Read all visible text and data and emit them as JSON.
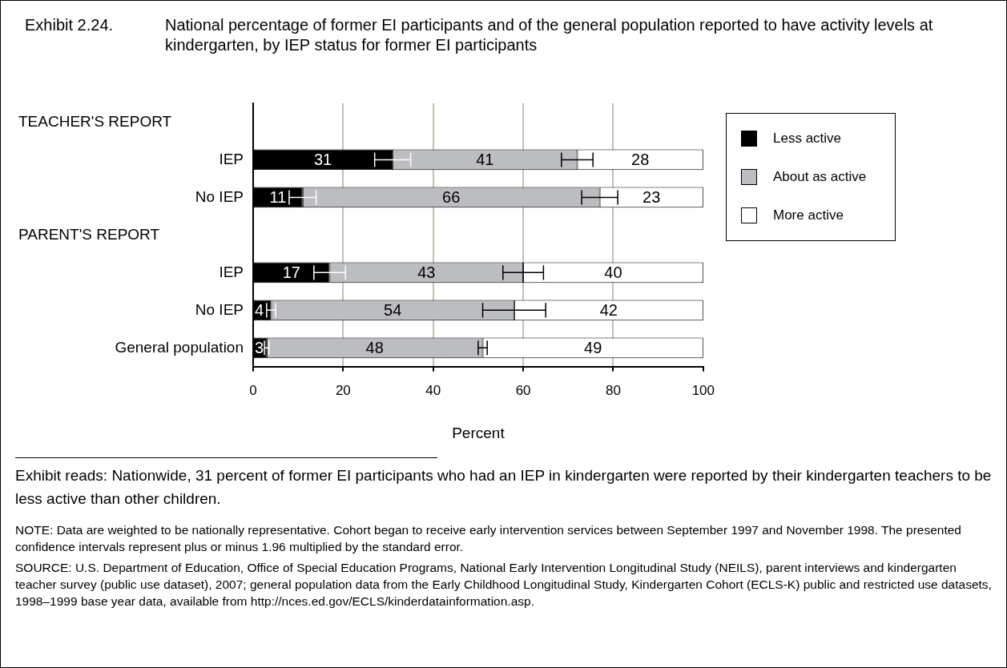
{
  "chart_data": {
    "type": "bar",
    "orientation": "horizontal",
    "stacked": true,
    "title": "Exhibit 2.24.  National percentage of former EI participants and of the general population reported to have activity levels at kindergarten, by IEP status for former EI participants",
    "xlabel": "Percent",
    "categories": [
      null,
      "IEP",
      "No IEP",
      null,
      "IEP",
      "No IEP",
      "General population"
    ],
    "series": [
      {
        "name": "Less active",
        "color": "#000000",
        "values": [
          null,
          31,
          11,
          null,
          17,
          4,
          3
        ],
        "errors": [
          null,
          4,
          3,
          null,
          3.5,
          1,
          0.5
        ]
      },
      {
        "name": "About as active",
        "color": "#bcbdc0",
        "values": [
          null,
          41,
          66,
          null,
          43,
          54,
          48
        ],
        "errors": [
          null,
          3.5,
          4,
          null,
          4.5,
          7,
          1
        ]
      },
      {
        "name": "More active",
        "color": "#ffffff",
        "values": [
          null,
          28,
          23,
          null,
          40,
          42,
          49
        ]
      }
    ],
    "xlim": [
      0,
      100
    ],
    "xticks": [
      0,
      20,
      40,
      60,
      80,
      100
    ],
    "grid": "x",
    "legend": "top right",
    "data_labels": true,
    "annotations": [
      "TEACHER'S REPORT",
      "PARENT'S REPORT",
      "Exhibit reads: Nationwide, 31 percent of former EI participants who had an IEP in kindergarten were reported by their kindergarten teachers to be less active than other children.",
      "NOTE: Data are weighted to be nationally representative. Cohort began to receive early intervention services between September 1997 and November 1998. The presented confidence intervals represent plus or minus 1.96 multiplied by the standard error.",
      "SOURCE: U.S. Department of Education, Office of Special Education Programs, National Early Intervention Longitudinal Study (NEILS), parent interviews and kindergarten teacher survey (public use dataset), 2007; general population data from the Early Childhood Longitudinal Study, Kindergarten Cohort (ECLS-K) public and restricted use datasets, 1998–1999 base year data, available from http://nces.ed.gov/ECLS/kinderdatainformation.asp."
    ]
  }
}
